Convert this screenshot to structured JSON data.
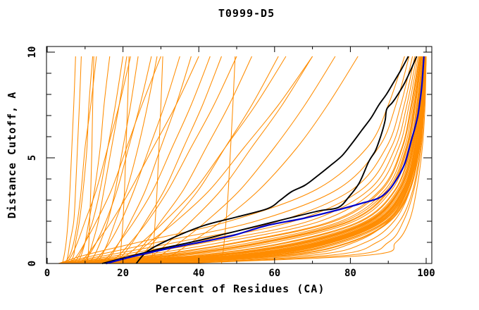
{
  "chart_data": {
    "type": "line",
    "title": "T0999-D5",
    "xlabel": "Percent of Residues (CA)",
    "ylabel": "Distance Cutoff, A",
    "xlim": [
      0,
      100
    ],
    "ylim": [
      0,
      10
    ],
    "x_major_ticks": [
      0,
      20,
      40,
      60,
      80,
      100
    ],
    "x_minor_step": 10,
    "y_major_ticks": [
      0,
      5,
      10
    ],
    "y_minor_step": 1,
    "grid": false,
    "legend": "none",
    "colors": {
      "models": "#ff8c00",
      "highlight_black": "#000000",
      "highlight_blue": "#0000cc",
      "axis": "#000000",
      "background": "#ffffff"
    },
    "series_note": "orange = predicted models; two black curves and one blue curve are highlighted models",
    "y_anchors": [
      0,
      0.4,
      1,
      2,
      3.5,
      5.5,
      7.5,
      9.8
    ],
    "orange_curves": [
      [
        35,
        85,
        92,
        95.5,
        97.5,
        99,
        99.7,
        100
      ],
      [
        32,
        80,
        90,
        94,
        96.8,
        98.7,
        99.5,
        100
      ],
      [
        30,
        75,
        87,
        93,
        96.5,
        98.5,
        99.5,
        100
      ],
      [
        26,
        70,
        84,
        91.5,
        95.8,
        98,
        99.3,
        99.9
      ],
      [
        22,
        66,
        81,
        90,
        95,
        97.8,
        99,
        99.8
      ],
      [
        19,
        55,
        74,
        88,
        94.5,
        97.5,
        98.8,
        99.7
      ],
      [
        24,
        60,
        77,
        89.5,
        95.2,
        98,
        99.2,
        99.9
      ],
      [
        16,
        52,
        72,
        87,
        94,
        97,
        98.5,
        99.6
      ],
      [
        28,
        64,
        80,
        90.5,
        95.8,
        98.2,
        99.4,
        100
      ],
      [
        14,
        49,
        70,
        86,
        93.5,
        96.8,
        98.3,
        99.5
      ],
      [
        21,
        57,
        75,
        88.5,
        94.8,
        97.6,
        99,
        99.8
      ],
      [
        12,
        46,
        68,
        85,
        93,
        96.5,
        98,
        99.4
      ],
      [
        18,
        53,
        73,
        87.5,
        94.2,
        97.2,
        98.6,
        99.6
      ],
      [
        10,
        43,
        66,
        84,
        92.5,
        96.2,
        97.8,
        99.3
      ],
      [
        25,
        61,
        78,
        89.8,
        95.5,
        98.1,
        99.2,
        99.9
      ],
      [
        9,
        40,
        63,
        82.5,
        91.8,
        95.8,
        97.5,
        99.1
      ],
      [
        15,
        50,
        71,
        86.5,
        93.8,
        97,
        98.4,
        99.5
      ],
      [
        8,
        37,
        60,
        81,
        91,
        95.4,
        97.2,
        98.9
      ],
      [
        20,
        56,
        74.5,
        88.2,
        94.6,
        97.5,
        98.9,
        99.7
      ],
      [
        7,
        34,
        57,
        79.5,
        90.2,
        94.9,
        96.9,
        98.7
      ],
      [
        13,
        47,
        69,
        85.5,
        93.2,
        96.6,
        98.1,
        99.4
      ],
      [
        6,
        31,
        54,
        77.5,
        89.2,
        94.3,
        96.5,
        98.5
      ],
      [
        17,
        54,
        73.5,
        87.8,
        94.4,
        97.3,
        98.7,
        99.6
      ],
      [
        5,
        28,
        50,
        75,
        88,
        93.6,
        96,
        98.2
      ],
      [
        11,
        44,
        67,
        84.5,
        92.8,
        96.4,
        97.9,
        99.3
      ],
      [
        4.5,
        25,
        46,
        72,
        86.5,
        92.8,
        95.5,
        97.9
      ],
      [
        23,
        59,
        76.5,
        89.2,
        95,
        97.9,
        99.1,
        99.8
      ],
      [
        4,
        22,
        42,
        69,
        85,
        91.9,
        94.9,
        97.5
      ],
      [
        9.5,
        41,
        64,
        83,
        92,
        96,
        97.6,
        99.2
      ],
      [
        3.5,
        19,
        38,
        65,
        83,
        90.8,
        94.2,
        97
      ],
      [
        14.5,
        51,
        71.5,
        86.8,
        93.9,
        97.1,
        98.5,
        99.5
      ],
      [
        3,
        16,
        34,
        61,
        80.5,
        89.5,
        93.3,
        96.4
      ],
      [
        27,
        63,
        79.5,
        90.2,
        95.7,
        98.3,
        99.3,
        99.9
      ],
      [
        6.5,
        33,
        56,
        78.5,
        89.8,
        94.7,
        96.8,
        98.6
      ],
      [
        10.5,
        45,
        67.5,
        84.8,
        92.9,
        96.5,
        98,
        99.3
      ],
      [
        3,
        13,
        29,
        55,
        76.5,
        87.5,
        92,
        95.5
      ],
      [
        16.5,
        52.5,
        72.5,
        87.2,
        94.1,
        97.1,
        98.5,
        99.6
      ],
      [
        5.5,
        29,
        51,
        75.8,
        88.4,
        93.8,
        96.2,
        98.3
      ],
      [
        12.5,
        46.5,
        68.5,
        85.2,
        93.1,
        96.6,
        98.1,
        99.4
      ],
      [
        3,
        10,
        24,
        48,
        71,
        84.5,
        90,
        94.3
      ],
      [
        21.5,
        57.5,
        75.5,
        88.7,
        94.9,
        97.7,
        99,
        99.8
      ],
      [
        7.5,
        35,
        58,
        80,
        90.5,
        95.1,
        97,
        98.8
      ],
      [
        4,
        4.5,
        5,
        5.5,
        6,
        6.5,
        7,
        7.5
      ],
      [
        5,
        5.5,
        6,
        7,
        7.5,
        8,
        8.5,
        9
      ],
      [
        6,
        7,
        7.5,
        8.5,
        9.5,
        10.5,
        11,
        12
      ],
      [
        4.5,
        6,
        7,
        8,
        9,
        10,
        11.5,
        13
      ],
      [
        8,
        9,
        10,
        11,
        12.5,
        14,
        15,
        16.5
      ],
      [
        7,
        8.5,
        10,
        12,
        14,
        16,
        18,
        20
      ],
      [
        10,
        11,
        12,
        13.5,
        15,
        17,
        19,
        21
      ],
      [
        11,
        12.5,
        14,
        16,
        18,
        20,
        22,
        24
      ],
      [
        9,
        11,
        13,
        15.5,
        18.5,
        21.5,
        24.5,
        27.5
      ],
      [
        13,
        14.5,
        16,
        18,
        21,
        24,
        26.5,
        29
      ],
      [
        12,
        14,
        16.5,
        19.5,
        23,
        27,
        31,
        35
      ],
      [
        15,
        17,
        19,
        22,
        26,
        30,
        34,
        38
      ],
      [
        14,
        16.5,
        19,
        23,
        28,
        33,
        38,
        43
      ],
      [
        18,
        20,
        22.5,
        26,
        31,
        36,
        41,
        46
      ],
      [
        16,
        19,
        22,
        26.5,
        32,
        38,
        44,
        50
      ],
      [
        20,
        23,
        26,
        30,
        36,
        42,
        48,
        54
      ],
      [
        22,
        25,
        28,
        33,
        40,
        47,
        54,
        61
      ],
      [
        17,
        21,
        25,
        31,
        39,
        47,
        55,
        63
      ],
      [
        24,
        28,
        32,
        38,
        46,
        54,
        62,
        70
      ],
      [
        26,
        30,
        35,
        42,
        51,
        60,
        68,
        76
      ],
      [
        5,
        6.5,
        8,
        10,
        13,
        16,
        19,
        22
      ],
      [
        28,
        33,
        38,
        46,
        56,
        66,
        74,
        82
      ],
      [
        19,
        23,
        27,
        34,
        43,
        52,
        61,
        70
      ],
      [
        6,
        8,
        10,
        13,
        17,
        21,
        25,
        30
      ],
      [
        8.5,
        10.5,
        13,
        17,
        22,
        28,
        34,
        40
      ],
      [
        10.5,
        10.8,
        11,
        11.2,
        11.5,
        11.8,
        12,
        12.3
      ],
      [
        19,
        19.3,
        19.6,
        20,
        20.4,
        20.8,
        21.2,
        21.6
      ],
      [
        27.5,
        27.8,
        28.1,
        28.5,
        29,
        29.5,
        30,
        30.5
      ],
      [
        46,
        46.3,
        46.7,
        47.2,
        47.8,
        48.4,
        49,
        49.6
      ]
    ],
    "black_curve_1": [
      [
        23.5,
        0
      ],
      [
        26.6,
        0.6
      ],
      [
        33,
        1.2
      ],
      [
        41.4,
        1.8
      ],
      [
        50,
        2.2
      ],
      [
        58.2,
        2.6
      ],
      [
        61.5,
        3.0
      ],
      [
        64.5,
        3.4
      ],
      [
        68,
        3.7
      ],
      [
        71,
        4.1
      ],
      [
        74.5,
        4.6
      ],
      [
        77.8,
        5.1
      ],
      [
        80.5,
        5.7
      ],
      [
        83,
        6.3
      ],
      [
        85.5,
        6.9
      ],
      [
        87.5,
        7.5
      ],
      [
        89.5,
        8.0
      ],
      [
        91.5,
        8.6
      ],
      [
        93.5,
        9.2
      ],
      [
        95.3,
        9.8
      ]
    ],
    "black_curve_2": [
      [
        14.5,
        0
      ],
      [
        22,
        0.35
      ],
      [
        30,
        0.7
      ],
      [
        39,
        1.05
      ],
      [
        47,
        1.4
      ],
      [
        56,
        1.8
      ],
      [
        65,
        2.2
      ],
      [
        72,
        2.5
      ],
      [
        76.8,
        2.65
      ],
      [
        79.6,
        3.15
      ],
      [
        82.3,
        3.8
      ],
      [
        84.8,
        4.8
      ],
      [
        86.5,
        5.3
      ],
      [
        87.4,
        5.7
      ],
      [
        88.5,
        6.3
      ],
      [
        89.2,
        6.8
      ],
      [
        89.6,
        7.3
      ],
      [
        91,
        7.6
      ],
      [
        92.2,
        7.9
      ],
      [
        94.2,
        8.5
      ],
      [
        95.8,
        9.1
      ],
      [
        97.5,
        9.8
      ]
    ],
    "blue_curve": [
      [
        15.5,
        0
      ],
      [
        23,
        0.35
      ],
      [
        33,
        0.75
      ],
      [
        43,
        1.1
      ],
      [
        49.5,
        1.35
      ],
      [
        58,
        1.8
      ],
      [
        68,
        2.15
      ],
      [
        77,
        2.55
      ],
      [
        83,
        2.85
      ],
      [
        87.5,
        3.1
      ],
      [
        90.3,
        3.5
      ],
      [
        92.6,
        4.1
      ],
      [
        94.3,
        4.7
      ],
      [
        95.3,
        5.3
      ],
      [
        96.2,
        5.9
      ],
      [
        97,
        6.4
      ],
      [
        97.8,
        7.0
      ],
      [
        98.3,
        7.6
      ],
      [
        98.8,
        8.3
      ],
      [
        99.1,
        9.0
      ],
      [
        99.4,
        9.8
      ]
    ]
  }
}
